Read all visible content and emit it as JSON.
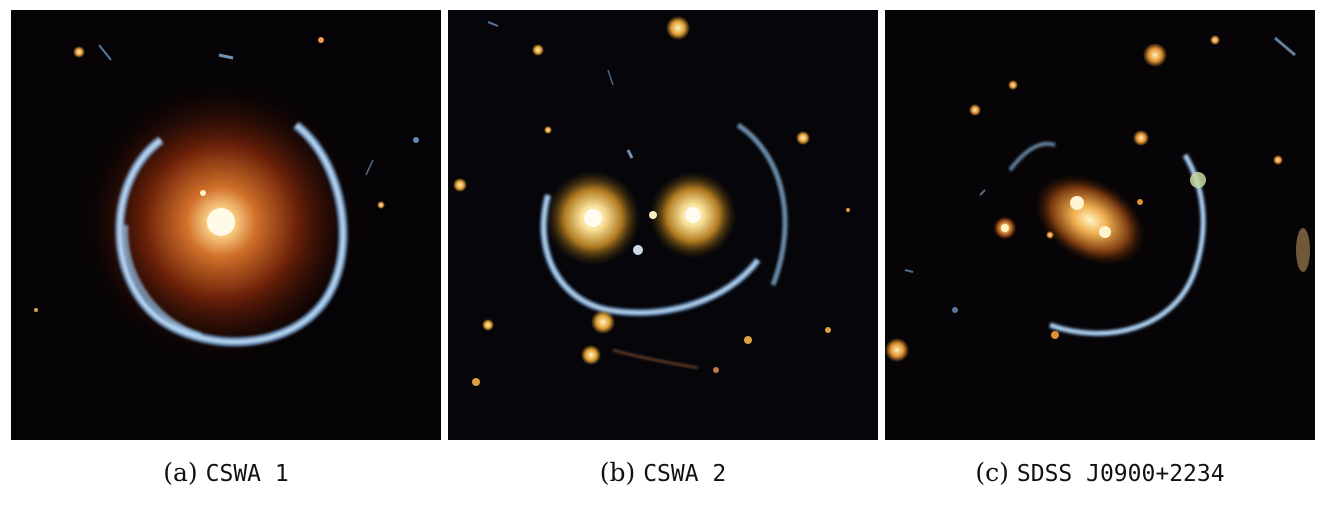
{
  "panels": [
    {
      "label": "(a)",
      "name": "CSWA 1",
      "icon": "einstein-ring-lens-image",
      "colors": {
        "core": "#fff6d0",
        "halo": "#c24a10",
        "arc": "#9fd2ff"
      }
    },
    {
      "label": "(b)",
      "name": "CSWA 2",
      "icon": "smiley-lens-image",
      "colors": {
        "core": "#fff4c8",
        "halo": "#c88a20",
        "arc": "#9fd2ff"
      }
    },
    {
      "label": "(c)",
      "name": "SDSS J0900+2234",
      "icon": "galaxy-cluster-arc-image",
      "colors": {
        "core": "#fff0b8",
        "halo": "#d88a30",
        "arc": "#9fd2ff"
      }
    }
  ]
}
